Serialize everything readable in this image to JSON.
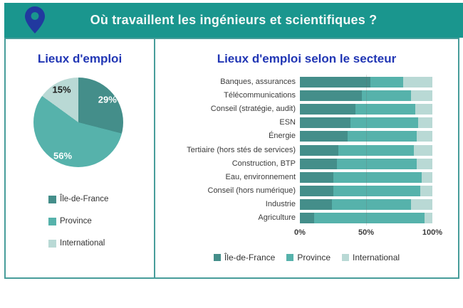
{
  "header": {
    "title": "Où travaillent les ingénieurs et scientifiques ?"
  },
  "pie_panel": {
    "title": "Lieux d'emploi"
  },
  "bar_panel": {
    "title": "Lieux d'emploi selon le secteur"
  },
  "colors": {
    "header_teal": "#1a968e",
    "pin_blue": "#21399f",
    "title_blue": "#2136b4",
    "panel_border": "#479d9a",
    "series_idf": "#448e8a",
    "series_province": "#56b2ab",
    "series_international": "#b9d9d5",
    "pie_label_light": "#ffffff",
    "pie_label_dark": "#1c1c1c",
    "text_dark": "#3b3b3b"
  },
  "chart_data": [
    {
      "type": "pie",
      "title": "Lieux d'emploi",
      "labels": [
        "Île-de-France",
        "Province",
        "International"
      ],
      "values": [
        29,
        56,
        15
      ],
      "value_labels": [
        "29%",
        "56%",
        "15%"
      ],
      "colors": [
        "#448e8a",
        "#56b2ab",
        "#b9d9d5"
      ],
      "legend_position": "below-vertical",
      "start_angle_deg": 0,
      "direction": "clockwise"
    },
    {
      "type": "bar",
      "subtype": "horizontal-stacked",
      "title": "Lieux d'emploi selon le secteur",
      "categories": [
        "Banques, assurances",
        "Télécommunications",
        "Conseil (stratégie, audit)",
        "ESN",
        "Énergie",
        "Tertiaire (hors stés de services)",
        "Construction, BTP",
        "Eau, environnement",
        "Conseil (hors numérique)",
        "Industrie",
        "Agriculture"
      ],
      "series": [
        {
          "name": "Île-de-France",
          "color": "#448e8a",
          "values": [
            53,
            47,
            42,
            38,
            36,
            29,
            28,
            25,
            25,
            24,
            11
          ]
        },
        {
          "name": "Province",
          "color": "#56b2ab",
          "values": [
            25,
            37,
            45,
            51,
            52,
            57,
            60,
            67,
            66,
            60,
            83
          ]
        },
        {
          "name": "International",
          "color": "#b9d9d5",
          "values": [
            22,
            16,
            13,
            11,
            12,
            14,
            12,
            8,
            9,
            16,
            6
          ]
        }
      ],
      "xlim": [
        0,
        100
      ],
      "x_tick_labels": [
        "0%",
        "50%",
        "100%"
      ],
      "x_tick_values": [
        0,
        50,
        100
      ],
      "gridline_at": 50,
      "legend_position": "bottom"
    }
  ]
}
